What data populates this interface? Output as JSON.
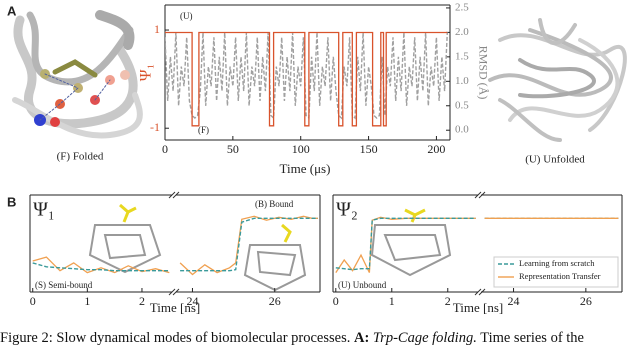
{
  "figure": {
    "panel_labels": [
      "A",
      "B"
    ],
    "image_labels": [
      "(F) Folded",
      "(U) Unfolded"
    ]
  },
  "caption": {
    "text": "Figure 2: Slow dynamical modes of biomolecular processes.",
    "panel": "A:",
    "title": "Trp-Cage folding.",
    "rest": "Time series of the"
  },
  "chart_data": [
    {
      "type": "line",
      "xlabel": "Time (μs)",
      "ylabel": "Ψ₁",
      "y2label": "RMSD (Å)",
      "xlim": [
        0,
        210
      ],
      "xticks": [
        0,
        50,
        100,
        150,
        200
      ],
      "ylim": [
        -1.24,
        1.51
      ],
      "yticks": [
        -1,
        1
      ],
      "y2lim": [
        -0.2,
        2.56
      ],
      "y2ticks": [
        {
          "value": 0,
          "label": "0.0"
        },
        {
          "value": 0.5,
          "label": "0.5"
        },
        {
          "value": 1,
          "label": "1.0"
        },
        {
          "value": 1.5,
          "label": "1.5"
        },
        {
          "value": 2,
          "label": "2.0"
        },
        {
          "value": 2.5,
          "label": "2.5"
        }
      ],
      "annotations": [
        "(U)",
        "(F)"
      ],
      "series": [
        {
          "color": "#a0a0a0",
          "axis": "y2",
          "dashed": true,
          "x": [
            0,
            2,
            4,
            6,
            8,
            10,
            12,
            14,
            16,
            18,
            20,
            22,
            24,
            26,
            28,
            30,
            32,
            34,
            36,
            38,
            40,
            42,
            44,
            46,
            48,
            50,
            52,
            54,
            56,
            58,
            60,
            62,
            64,
            66,
            68,
            70,
            72,
            74,
            76,
            78,
            80,
            82,
            84,
            86,
            88,
            90,
            92,
            94,
            96,
            98,
            100,
            102,
            104,
            106,
            108,
            110,
            112,
            114,
            116,
            118,
            120,
            122,
            124,
            126,
            128,
            130,
            132,
            134,
            136,
            138,
            140,
            142,
            144,
            146,
            148,
            150,
            152,
            154,
            156,
            158,
            160,
            162,
            164,
            166,
            168,
            170,
            172,
            174,
            176,
            178,
            180,
            182,
            184,
            186,
            188,
            190,
            192,
            194,
            196,
            198,
            200,
            202,
            204,
            206,
            208
          ],
          "values": [
            1.9,
            0.6,
            1.5,
            0.8,
            2.0,
            0.5,
            1.3,
            0.9,
            1.9,
            0.6,
            0.3,
            0.25,
            0.3,
            0.8,
            2.0,
            0.5,
            1.3,
            0.9,
            1.9,
            0.6,
            1.5,
            0.8,
            2.0,
            0.5,
            1.3,
            0.9,
            1.9,
            0.6,
            1.5,
            0.8,
            2.0,
            0.5,
            1.3,
            0.9,
            1.9,
            0.6,
            1.5,
            0.8,
            2.0,
            0.3,
            0.25,
            1.3,
            0.9,
            1.9,
            0.6,
            1.5,
            0.8,
            2.0,
            0.5,
            1.3,
            0.9,
            1.9,
            0.3,
            0.25,
            1.5,
            0.8,
            2.0,
            0.5,
            1.3,
            0.9,
            1.9,
            0.6,
            1.5,
            0.8,
            0.3,
            0.25,
            1.3,
            0.9,
            1.9,
            0.3,
            0.25,
            1.5,
            0.8,
            2.0,
            0.5,
            1.3,
            0.9,
            0.3,
            0.25,
            0.3,
            1.5,
            0.3,
            1.3,
            0.9,
            1.9,
            0.6,
            1.5,
            0.8,
            2.0,
            0.5,
            1.3,
            0.9,
            1.9,
            0.6,
            1.5,
            0.8,
            2.0,
            0.5,
            1.3,
            0.9,
            1.9,
            0.6,
            1.5,
            0.8,
            2.0
          ]
        },
        {
          "color": "#d9532c",
          "x": [
            0,
            20,
            20,
            25,
            25,
            77,
            77,
            80,
            80,
            103,
            103,
            106,
            106,
            128,
            128,
            131,
            131,
            138,
            138,
            141,
            141,
            153,
            153,
            159,
            159,
            161,
            161,
            163,
            163,
            208
          ],
          "values": [
            0.95,
            0.95,
            -0.95,
            -0.95,
            0.95,
            0.95,
            -0.95,
            -0.95,
            0.95,
            0.95,
            -0.95,
            -0.95,
            0.95,
            0.95,
            -0.95,
            -0.95,
            0.95,
            0.95,
            -0.95,
            -0.95,
            0.95,
            0.95,
            -0.95,
            -0.95,
            0.95,
            0.95,
            -0.95,
            -0.95,
            0.95,
            0.95
          ]
        }
      ]
    },
    {
      "type": "line",
      "title": "Ψ₁",
      "xlabel": "Time [ns]",
      "xlim": [
        -0.05,
        2.55
      ],
      "xticks": [
        0,
        1,
        2
      ],
      "ylim": [
        0,
        1
      ],
      "annotations": [
        "(S) Semi-bound"
      ],
      "x": [
        0,
        0.25,
        0.5,
        0.75,
        1,
        1.25,
        1.5,
        1.75,
        2,
        2.25,
        2.5
      ],
      "series": [
        {
          "color": "#f0a050",
          "values": [
            0.32,
            0.36,
            0.22,
            0.3,
            0.2,
            0.25,
            0.2,
            0.27,
            0.21,
            0.24,
            0.2
          ]
        },
        {
          "color": "#3a9a9a",
          "dashed": true,
          "values": [
            0.3,
            0.26,
            0.25,
            0.24,
            0.23,
            0.23,
            0.22,
            0.22,
            0.22,
            0.22,
            0.22
          ]
        }
      ]
    },
    {
      "type": "line",
      "xlim": [
        23.6,
        27.1
      ],
      "xticks": [
        24,
        26
      ],
      "ylim": [
        0,
        1
      ],
      "annotations": [
        "(B) Bound"
      ],
      "x": [
        23.7,
        24,
        24.3,
        24.6,
        24.9,
        25.05,
        25.2,
        25.5,
        25.8,
        26.1,
        26.4,
        26.7,
        26.9,
        27.05
      ],
      "series": [
        {
          "color": "#f0a050",
          "values": [
            0.3,
            0.18,
            0.28,
            0.2,
            0.25,
            0.3,
            0.75,
            0.78,
            0.74,
            0.77,
            0.75,
            0.78,
            0.76,
            0.76
          ]
        },
        {
          "color": "#3a9a9a",
          "dashed": true,
          "values": [
            0.22,
            0.22,
            0.22,
            0.22,
            0.22,
            0.23,
            0.72,
            0.76,
            0.76,
            0.76,
            0.76,
            0.76,
            0.76,
            0.76
          ]
        }
      ]
    },
    {
      "type": "line",
      "title": "Ψ₂",
      "xlabel": "Time [ns]",
      "xlim": [
        -0.05,
        2.54
      ],
      "xticks": [
        0,
        1,
        2
      ],
      "ylim": [
        0,
        1
      ],
      "annotations": [
        "(U) Unbound"
      ],
      "x": [
        0,
        0.15,
        0.3,
        0.45,
        0.6,
        0.65,
        0.8,
        1,
        1.25,
        1.5,
        1.75,
        2,
        2.25,
        2.5
      ],
      "series": [
        {
          "color": "#f0a050",
          "values": [
            0.2,
            0.33,
            0.22,
            0.38,
            0.2,
            0.74,
            0.77,
            0.75,
            0.76,
            0.76,
            0.76,
            0.76,
            0.76,
            0.76
          ]
        },
        {
          "color": "#3a9a9a",
          "dashed": true,
          "values": [
            0.25,
            0.24,
            0.23,
            0.24,
            0.24,
            0.74,
            0.76,
            0.76,
            0.76,
            0.76,
            0.76,
            0.76,
            0.76,
            0.76
          ]
        }
      ]
    },
    {
      "type": "line",
      "xlim": [
        23.1,
        27
      ],
      "xticks": [
        24,
        26
      ],
      "ylim": [
        0,
        1
      ],
      "legend": "lower right",
      "x": [
        23.2,
        24,
        25,
        26,
        26.9
      ],
      "series": [
        {
          "name": "Learning from scratch",
          "color": "#3a9a9a",
          "dashed": true,
          "values": [
            0.76,
            0.76,
            0.76,
            0.76,
            0.76
          ]
        },
        {
          "name": "Representation Transfer",
          "color": "#f0a050",
          "values": [
            0.76,
            0.76,
            0.76,
            0.76,
            0.76
          ]
        }
      ]
    }
  ]
}
